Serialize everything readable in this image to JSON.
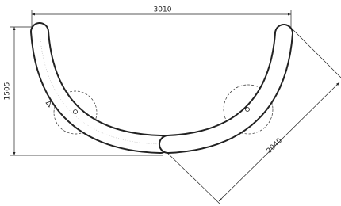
{
  "dimensions": {
    "width": "3010",
    "height": "1505",
    "diagonal": "2040"
  }
}
